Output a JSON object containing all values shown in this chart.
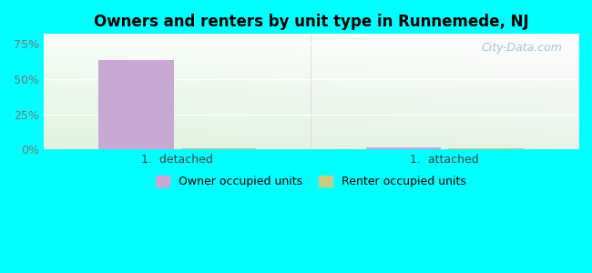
{
  "title": "Owners and renters by unit type in Runnemede, NJ",
  "categories": [
    "1.  detached",
    "1.  attached"
  ],
  "owner_values": [
    63.5,
    1.5
  ],
  "renter_values": [
    0.8,
    0.8
  ],
  "owner_color": "#c9a8d4",
  "renter_color": "#c8cc80",
  "yticks": [
    0,
    25,
    50,
    75
  ],
  "ytick_labels": [
    "0%",
    "25%",
    "50%",
    "75%"
  ],
  "ylim": [
    0,
    82
  ],
  "bar_width": 0.28,
  "legend_owner": "Owner occupied units",
  "legend_renter": "Renter occupied units",
  "watermark": "City-Data.com",
  "outer_bg": "#00ffff",
  "grid_color": "#e8e8e8"
}
